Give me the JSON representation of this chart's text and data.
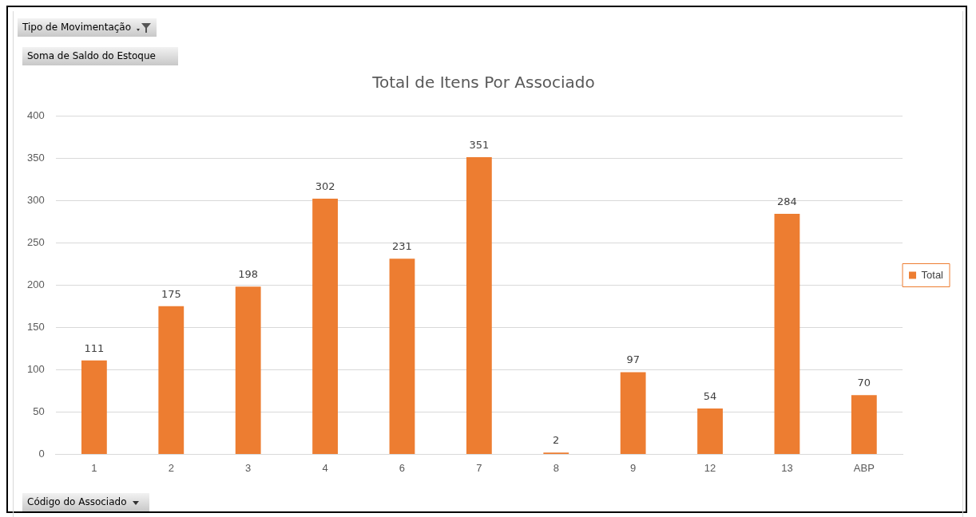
{
  "chart_data": {
    "type": "bar",
    "title": "Total de Itens Por Associado",
    "categories": [
      "1",
      "2",
      "3",
      "4",
      "6",
      "7",
      "8",
      "9",
      "12",
      "13",
      "ABP"
    ],
    "series": [
      {
        "name": "Total",
        "color": "#ed7d31",
        "values": [
          111,
          175,
          198,
          302,
          231,
          351,
          2,
          97,
          54,
          284,
          70
        ]
      }
    ],
    "ylim": [
      0,
      400
    ],
    "yticks": [
      0,
      50,
      100,
      150,
      200,
      250,
      300,
      350,
      400
    ],
    "grid": "y",
    "legend": "right",
    "data_labels": true,
    "annotations": [
      "Tipo de Movimentação",
      "Soma de Saldo do Estoque",
      "Código do Associado"
    ]
  }
}
